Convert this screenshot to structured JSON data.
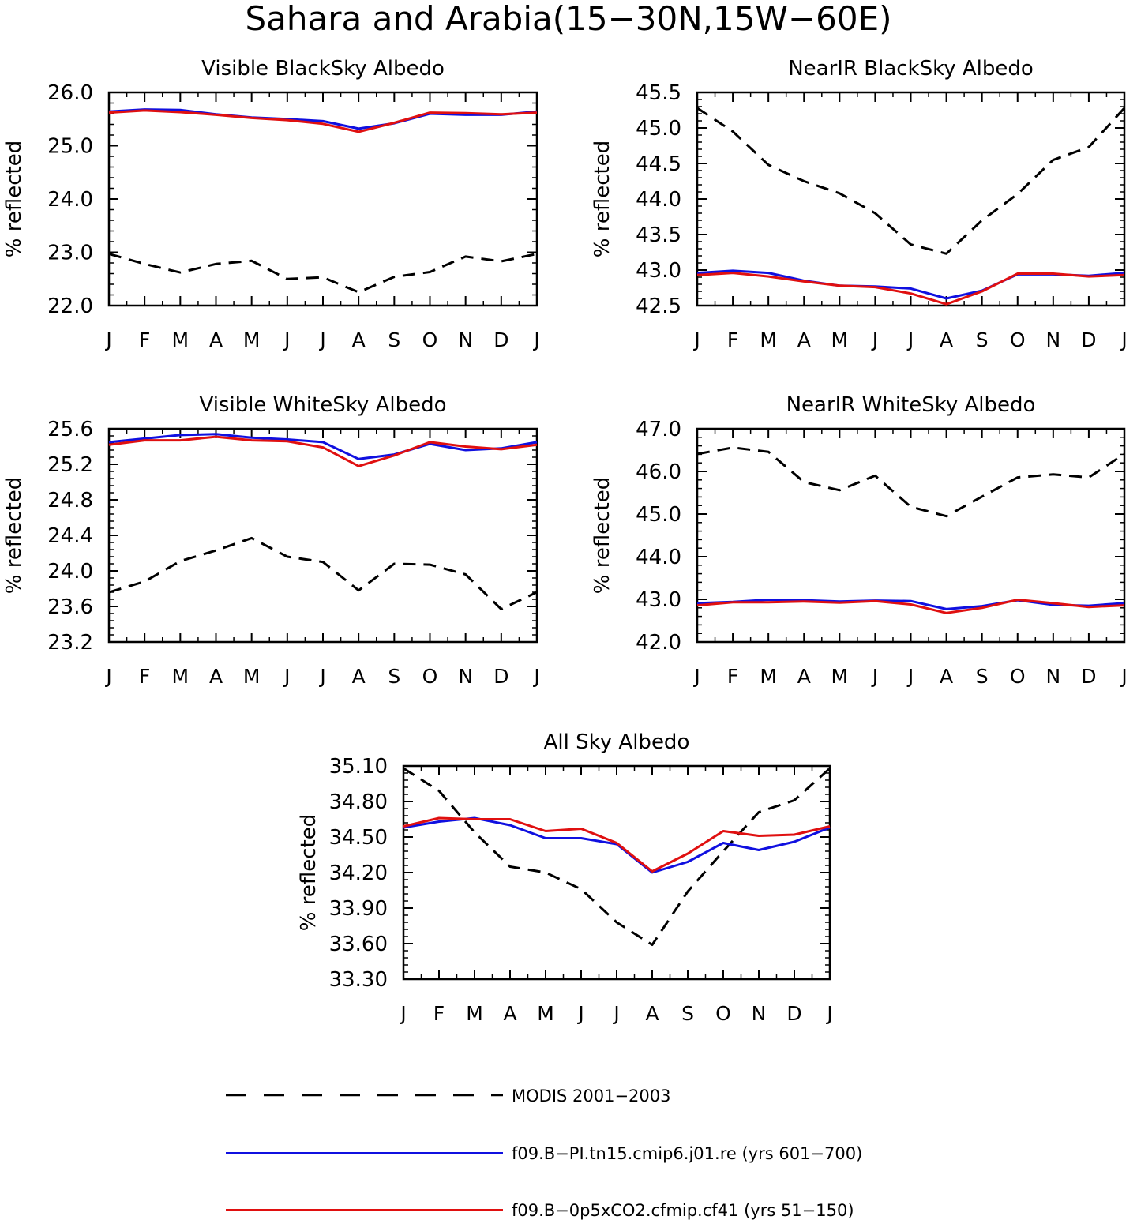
{
  "title": "Sahara and Arabia(15−30N,15W−60E)",
  "colors": {
    "modis": "#000000",
    "pi": "#1010e0",
    "co2": "#e01010"
  },
  "legend": [
    {
      "key": "modis",
      "label": "MODIS 2001−2003",
      "style": "dashed"
    },
    {
      "key": "pi",
      "label": "f09.B−PI.tn15.cmip6.j01.re (yrs 601−700)",
      "style": "solid"
    },
    {
      "key": "co2",
      "label": "f09.B−0p5xCO2.cfmip.cf41 (yrs 51−150)",
      "style": "solid"
    }
  ],
  "chart_data": [
    {
      "type": "line",
      "title": "Visible BlackSky Albedo",
      "ylabel": "% reflected",
      "categories": [
        "J",
        "F",
        "M",
        "A",
        "M",
        "J",
        "J",
        "A",
        "S",
        "O",
        "N",
        "D",
        "J"
      ],
      "ylim": [
        22.0,
        26.0
      ],
      "yticks": [
        "22.0",
        "23.0",
        "24.0",
        "25.0",
        "26.0"
      ],
      "series": [
        {
          "key": "modis",
          "values": [
            22.97,
            22.78,
            22.62,
            22.78,
            22.84,
            22.5,
            22.53,
            22.25,
            22.54,
            22.63,
            22.92,
            22.83,
            22.97
          ]
        },
        {
          "key": "pi",
          "values": [
            25.64,
            25.68,
            25.67,
            25.59,
            25.53,
            25.5,
            25.46,
            25.32,
            25.42,
            25.6,
            25.58,
            25.58,
            25.64
          ]
        },
        {
          "key": "co2",
          "values": [
            25.62,
            25.66,
            25.63,
            25.58,
            25.52,
            25.48,
            25.41,
            25.26,
            25.43,
            25.62,
            25.61,
            25.59,
            25.62
          ]
        }
      ]
    },
    {
      "type": "line",
      "title": "NearIR BlackSky Albedo",
      "ylabel": "% reflected",
      "categories": [
        "J",
        "F",
        "M",
        "A",
        "M",
        "J",
        "J",
        "A",
        "S",
        "O",
        "N",
        "D",
        "J"
      ],
      "ylim": [
        42.5,
        45.5
      ],
      "yticks": [
        "42.5",
        "43.0",
        "43.5",
        "44.0",
        "44.5",
        "45.0",
        "45.5"
      ],
      "series": [
        {
          "key": "modis",
          "values": [
            45.28,
            44.95,
            44.48,
            44.25,
            44.08,
            43.8,
            43.36,
            43.23,
            43.7,
            44.07,
            44.55,
            44.73,
            45.28
          ]
        },
        {
          "key": "pi",
          "values": [
            42.96,
            42.99,
            42.96,
            42.85,
            42.78,
            42.77,
            42.74,
            42.6,
            42.71,
            42.94,
            42.94,
            42.92,
            42.96
          ]
        },
        {
          "key": "co2",
          "values": [
            42.93,
            42.96,
            42.91,
            42.84,
            42.78,
            42.76,
            42.67,
            42.52,
            42.7,
            42.95,
            42.95,
            42.91,
            42.93
          ]
        }
      ]
    },
    {
      "type": "line",
      "title": "Visible WhiteSky Albedo",
      "ylabel": "% reflected",
      "categories": [
        "J",
        "F",
        "M",
        "A",
        "M",
        "J",
        "J",
        "A",
        "S",
        "O",
        "N",
        "D",
        "J"
      ],
      "ylim": [
        23.2,
        25.6
      ],
      "yticks": [
        "23.2",
        "23.6",
        "24.0",
        "24.4",
        "24.8",
        "25.2",
        "25.6"
      ],
      "series": [
        {
          "key": "modis",
          "values": [
            23.76,
            23.88,
            24.11,
            24.23,
            24.37,
            24.16,
            24.1,
            23.78,
            24.08,
            24.07,
            23.96,
            23.57,
            23.76
          ]
        },
        {
          "key": "pi",
          "values": [
            25.45,
            25.49,
            25.53,
            25.54,
            25.5,
            25.48,
            25.45,
            25.26,
            25.31,
            25.43,
            25.36,
            25.38,
            25.45
          ]
        },
        {
          "key": "co2",
          "values": [
            25.42,
            25.47,
            25.47,
            25.51,
            25.47,
            25.46,
            25.39,
            25.18,
            25.3,
            25.45,
            25.4,
            25.37,
            25.42
          ]
        }
      ]
    },
    {
      "type": "line",
      "title": "NearIR WhiteSky Albedo",
      "ylabel": "% reflected",
      "categories": [
        "J",
        "F",
        "M",
        "A",
        "M",
        "J",
        "J",
        "A",
        "S",
        "O",
        "N",
        "D",
        "J"
      ],
      "ylim": [
        42.0,
        47.0
      ],
      "yticks": [
        "42.0",
        "43.0",
        "44.0",
        "45.0",
        "46.0",
        "47.0"
      ],
      "series": [
        {
          "key": "modis",
          "values": [
            46.41,
            46.56,
            46.46,
            45.75,
            45.56,
            45.9,
            45.17,
            44.95,
            45.41,
            45.86,
            45.93,
            45.86,
            46.41
          ]
        },
        {
          "key": "pi",
          "values": [
            42.91,
            42.94,
            42.99,
            42.98,
            42.95,
            42.97,
            42.96,
            42.77,
            42.84,
            42.98,
            42.87,
            42.85,
            42.91
          ]
        },
        {
          "key": "co2",
          "values": [
            42.86,
            42.93,
            42.93,
            42.95,
            42.92,
            42.96,
            42.88,
            42.68,
            42.8,
            42.99,
            42.91,
            42.82,
            42.86
          ]
        }
      ]
    },
    {
      "type": "line",
      "title": "All Sky Albedo",
      "ylabel": "% reflected",
      "categories": [
        "J",
        "F",
        "M",
        "A",
        "M",
        "J",
        "J",
        "A",
        "S",
        "O",
        "N",
        "D",
        "J"
      ],
      "ylim": [
        33.3,
        35.1
      ],
      "yticks": [
        "33.30",
        "33.60",
        "33.90",
        "34.20",
        "34.50",
        "34.80",
        "35.10"
      ],
      "series": [
        {
          "key": "modis",
          "values": [
            35.08,
            34.89,
            34.54,
            34.25,
            34.2,
            34.06,
            33.78,
            33.59,
            34.04,
            34.38,
            34.71,
            34.81,
            35.08
          ]
        },
        {
          "key": "pi",
          "values": [
            34.58,
            34.63,
            34.66,
            34.6,
            34.49,
            34.49,
            34.44,
            34.2,
            34.29,
            34.45,
            34.39,
            34.46,
            34.58
          ]
        },
        {
          "key": "co2",
          "values": [
            34.59,
            34.66,
            34.65,
            34.65,
            34.55,
            34.57,
            34.45,
            34.21,
            34.36,
            34.55,
            34.51,
            34.52,
            34.59
          ]
        }
      ]
    }
  ]
}
